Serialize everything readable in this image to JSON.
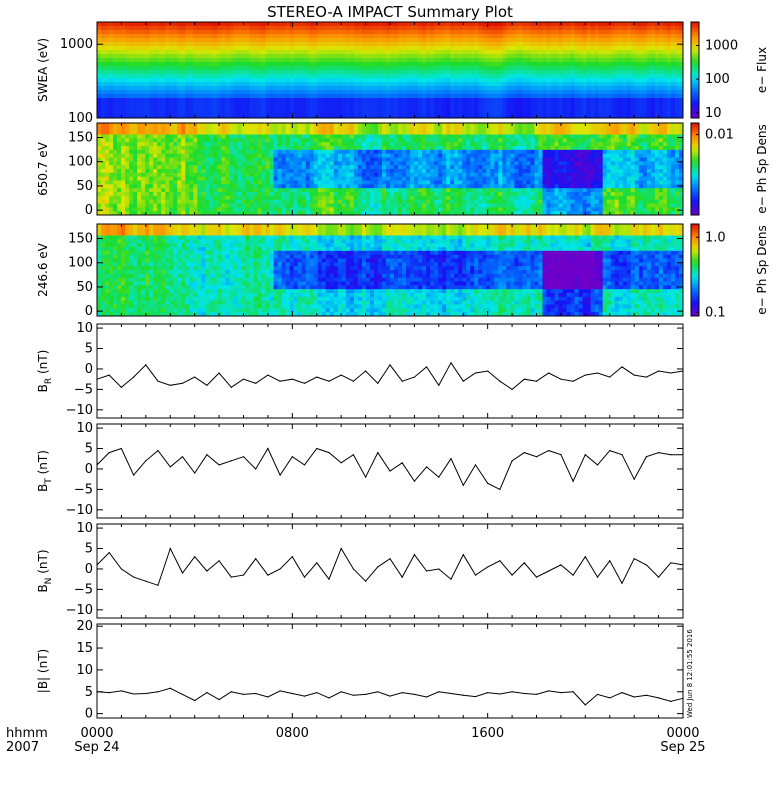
{
  "chart_data": {
    "type": "multi-panel summary plot",
    "title": "STEREO-A IMPACT Summary Plot",
    "x_axis": {
      "range_hours": [
        0,
        24
      ],
      "ticks": [
        {
          "hour": 0,
          "label": "0000",
          "sub": "Sep 24"
        },
        {
          "hour": 8,
          "label": "0800",
          "sub": ""
        },
        {
          "hour": 16,
          "label": "1600",
          "sub": ""
        },
        {
          "hour": 24,
          "label": "0000",
          "sub": "Sep 25"
        }
      ],
      "corner_label": "hhmm",
      "corner_year": "2007"
    },
    "timestamp_note": "Wed Jun  8 12:01:55 2016",
    "panels": [
      {
        "id": "swea",
        "type": "heatmap",
        "ylabel": "SWEA (eV)",
        "yscale": "log",
        "ylim": [
          100,
          2000
        ],
        "yticks": [
          {
            "v": 100,
            "label": "100"
          },
          {
            "v": 1000,
            "label": "1000"
          }
        ],
        "colorbar": {
          "label": "e− Flux",
          "scale": "log",
          "range": [
            7,
            5000
          ],
          "ticks": [
            {
              "v": 10,
              "label": "10"
            },
            {
              "v": 100,
              "label": "100"
            },
            {
              "v": 1000,
              "label": "1000"
            }
          ]
        }
      },
      {
        "id": "pad650",
        "type": "heatmap",
        "ylabel": "650.7 eV",
        "yscale": "linear",
        "ylim": [
          -10,
          180
        ],
        "yticks": [
          {
            "v": 0,
            "label": "0"
          },
          {
            "v": 50,
            "label": "50"
          },
          {
            "v": 100,
            "label": "100"
          },
          {
            "v": 150,
            "label": "150"
          }
        ],
        "colorbar": {
          "label": "e− Ph Sp Dens",
          "scale": "log",
          "range": [
            0.0006,
            0.015
          ],
          "ticks": [
            {
              "v": 0.01,
              "label": "0.01"
            }
          ]
        }
      },
      {
        "id": "pad246",
        "type": "heatmap",
        "ylabel": "246.6 eV",
        "yscale": "linear",
        "ylim": [
          -10,
          180
        ],
        "yticks": [
          {
            "v": 0,
            "label": "0"
          },
          {
            "v": 50,
            "label": "50"
          },
          {
            "v": 100,
            "label": "100"
          },
          {
            "v": 150,
            "label": "150"
          }
        ],
        "colorbar": {
          "label": "e− Ph Sp Dens",
          "scale": "log",
          "range": [
            0.09,
            1.5
          ],
          "ticks": [
            {
              "v": 0.1,
              "label": "0.1"
            },
            {
              "v": 1.0,
              "label": "1.0"
            }
          ]
        }
      },
      {
        "id": "br",
        "type": "line",
        "ylabel": "B",
        "ylabel_sub": "R",
        "ylabel_unit": "(nT)",
        "ylim": [
          -12,
          11
        ],
        "yticks": [
          {
            "v": -10,
            "label": "−10"
          },
          {
            "v": -5,
            "label": "−5"
          },
          {
            "v": 0,
            "label": "0"
          },
          {
            "v": 5,
            "label": "5"
          },
          {
            "v": 10,
            "label": "10"
          }
        ],
        "x": [
          0.0,
          0.5,
          1.0,
          1.5,
          2.0,
          2.5,
          3.0,
          3.5,
          4.0,
          4.5,
          5.0,
          5.5,
          6.0,
          6.5,
          7.0,
          7.5,
          8.0,
          8.5,
          9.0,
          9.5,
          10.0,
          10.5,
          11.0,
          11.5,
          12.0,
          12.5,
          13.0,
          13.5,
          14.0,
          14.5,
          15.0,
          15.5,
          16.0,
          16.5,
          17.0,
          17.5,
          18.0,
          18.5,
          19.0,
          19.5,
          20.0,
          20.5,
          21.0,
          21.5,
          22.0,
          22.5,
          23.0,
          23.5,
          24.0
        ],
        "y": [
          -2.5,
          -1.5,
          -4.5,
          -2.0,
          1.0,
          -3.0,
          -4.0,
          -3.5,
          -2.0,
          -4.0,
          -1.0,
          -4.5,
          -2.5,
          -3.5,
          -1.5,
          -3.0,
          -2.5,
          -3.5,
          -2.0,
          -3.0,
          -1.5,
          -3.0,
          -0.5,
          -3.5,
          1.0,
          -3.0,
          -2.0,
          0.5,
          -4.0,
          1.5,
          -3.0,
          -1.0,
          -0.5,
          -3.0,
          -5.0,
          -2.5,
          -3.0,
          -1.0,
          -2.5,
          -3.0,
          -1.5,
          -1.0,
          -2.0,
          0.5,
          -1.5,
          -2.0,
          -0.5,
          -1.0,
          -0.5
        ]
      },
      {
        "id": "bt",
        "type": "line",
        "ylabel": "B",
        "ylabel_sub": "T",
        "ylabel_unit": "(nT)",
        "ylim": [
          -12,
          11
        ],
        "yticks": [
          {
            "v": -10,
            "label": "−10"
          },
          {
            "v": -5,
            "label": "−5"
          },
          {
            "v": 0,
            "label": "0"
          },
          {
            "v": 5,
            "label": "5"
          },
          {
            "v": 10,
            "label": "10"
          }
        ],
        "x": [
          0.0,
          0.5,
          1.0,
          1.5,
          2.0,
          2.5,
          3.0,
          3.5,
          4.0,
          4.5,
          5.0,
          5.5,
          6.0,
          6.5,
          7.0,
          7.5,
          8.0,
          8.5,
          9.0,
          9.5,
          10.0,
          10.5,
          11.0,
          11.5,
          12.0,
          12.5,
          13.0,
          13.5,
          14.0,
          14.5,
          15.0,
          15.5,
          16.0,
          16.5,
          17.0,
          17.5,
          18.0,
          18.5,
          19.0,
          19.5,
          20.0,
          20.5,
          21.0,
          21.5,
          22.0,
          22.5,
          23.0,
          23.5,
          24.0
        ],
        "y": [
          1.0,
          4.0,
          5.0,
          -1.5,
          2.0,
          4.5,
          0.5,
          3.0,
          -1.0,
          3.5,
          1.0,
          2.0,
          3.0,
          0.0,
          5.0,
          -1.5,
          3.0,
          1.0,
          5.0,
          4.0,
          1.5,
          3.5,
          -2.0,
          4.0,
          -0.5,
          1.5,
          -3.0,
          0.5,
          -2.0,
          2.5,
          -4.0,
          1.0,
          -3.5,
          -5.0,
          2.0,
          4.0,
          3.0,
          4.5,
          3.5,
          -3.0,
          3.5,
          1.0,
          4.5,
          3.5,
          -2.5,
          3.0,
          4.0,
          3.5,
          3.5
        ]
      },
      {
        "id": "bn",
        "type": "line",
        "ylabel": "B",
        "ylabel_sub": "N",
        "ylabel_unit": "(nT)",
        "ylim": [
          -12,
          11
        ],
        "yticks": [
          {
            "v": -10,
            "label": "−10"
          },
          {
            "v": -5,
            "label": "−5"
          },
          {
            "v": 0,
            "label": "0"
          },
          {
            "v": 5,
            "label": "5"
          },
          {
            "v": 10,
            "label": "10"
          }
        ],
        "x": [
          0.0,
          0.5,
          1.0,
          1.5,
          2.0,
          2.5,
          3.0,
          3.5,
          4.0,
          4.5,
          5.0,
          5.5,
          6.0,
          6.5,
          7.0,
          7.5,
          8.0,
          8.5,
          9.0,
          9.5,
          10.0,
          10.5,
          11.0,
          11.5,
          12.0,
          12.5,
          13.0,
          13.5,
          14.0,
          14.5,
          15.0,
          15.5,
          16.0,
          16.5,
          17.0,
          17.5,
          18.0,
          18.5,
          19.0,
          19.5,
          20.0,
          20.5,
          21.0,
          21.5,
          22.0,
          22.5,
          23.0,
          23.5,
          24.0
        ],
        "y": [
          1.0,
          4.0,
          0.0,
          -2.0,
          -3.0,
          -4.0,
          5.0,
          -1.0,
          3.0,
          -0.5,
          2.0,
          -2.0,
          -1.5,
          2.5,
          -1.5,
          0.0,
          3.0,
          -2.0,
          1.5,
          -2.5,
          5.0,
          0.0,
          -3.0,
          0.5,
          2.5,
          -2.0,
          3.5,
          -0.5,
          0.0,
          -2.5,
          3.5,
          -1.5,
          0.5,
          2.0,
          -1.5,
          1.5,
          -2.0,
          -0.5,
          1.0,
          -1.5,
          3.0,
          -2.0,
          2.0,
          -3.5,
          2.5,
          1.0,
          -2.0,
          1.5,
          1.0
        ]
      },
      {
        "id": "bmag",
        "type": "line",
        "ylabel": "|B| (nT)",
        "ylim": [
          -1,
          20.5
        ],
        "yticks": [
          {
            "v": 0,
            "label": "0"
          },
          {
            "v": 5,
            "label": "5"
          },
          {
            "v": 10,
            "label": "10"
          },
          {
            "v": 15,
            "label": "15"
          },
          {
            "v": 20,
            "label": "20"
          }
        ],
        "x": [
          0.0,
          0.5,
          1.0,
          1.5,
          2.0,
          2.5,
          3.0,
          3.5,
          4.0,
          4.5,
          5.0,
          5.5,
          6.0,
          6.5,
          7.0,
          7.5,
          8.0,
          8.5,
          9.0,
          9.5,
          10.0,
          10.5,
          11.0,
          11.5,
          12.0,
          12.5,
          13.0,
          13.5,
          14.0,
          14.5,
          15.0,
          15.5,
          16.0,
          16.5,
          17.0,
          17.5,
          18.0,
          18.5,
          19.0,
          19.5,
          20.0,
          20.5,
          21.0,
          21.5,
          22.0,
          22.5,
          23.0,
          23.5,
          24.0
        ],
        "y": [
          5.0,
          4.8,
          5.2,
          4.5,
          4.6,
          5.0,
          5.8,
          4.4,
          3.0,
          4.8,
          3.2,
          5.0,
          4.4,
          4.6,
          3.8,
          5.2,
          4.6,
          4.0,
          4.8,
          3.6,
          5.0,
          4.2,
          4.4,
          5.0,
          4.0,
          4.8,
          4.4,
          3.8,
          5.0,
          4.6,
          4.2,
          3.9,
          4.8,
          4.5,
          5.0,
          4.6,
          4.4,
          5.2,
          4.8,
          5.0,
          2.0,
          4.4,
          3.6,
          4.8,
          3.8,
          4.2,
          3.6,
          2.8,
          3.5
        ]
      }
    ]
  }
}
